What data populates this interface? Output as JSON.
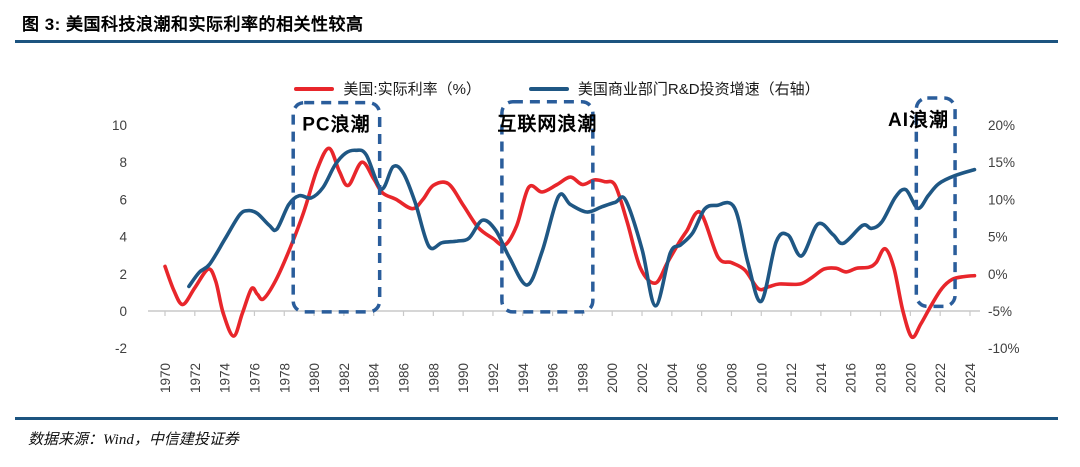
{
  "figure": {
    "title": "图 3:  美国科技浪潮和实际利率的相关性较高",
    "source": "数据来源：Wind，中信建投证券"
  },
  "colors": {
    "red_line": "#e8262b",
    "blue_line": "#1f5784",
    "box_blue": "#2a5d9b",
    "rule_blue": "#1c5480",
    "axis_gray": "#c9c9c9"
  },
  "legend": [
    {
      "label": "美国:实际利率（%）",
      "color": "#e8262b"
    },
    {
      "label": "美国商业部门R&D投资增速（右轴）",
      "color": "#1f5784"
    }
  ],
  "chart_data": {
    "type": "line",
    "title": "",
    "xlabel": "",
    "ylabel_left": "",
    "ylabel_right": "",
    "grid": false,
    "legend_position": "top-center",
    "x_ticks": [
      1970,
      1972,
      1974,
      1976,
      1978,
      1980,
      1982,
      1984,
      1986,
      1988,
      1990,
      1992,
      1994,
      1996,
      1998,
      2000,
      2002,
      2004,
      2006,
      2008,
      2010,
      2012,
      2014,
      2016,
      2018,
      2020,
      2022,
      2024
    ],
    "left_axis": {
      "ticks": [
        10,
        8,
        6,
        4,
        2,
        0,
        -2
      ],
      "labels": [
        "10",
        "8",
        "6",
        "4",
        "2",
        "0",
        "-2"
      ],
      "range": [
        -3.2,
        11.6
      ]
    },
    "right_axis": {
      "ticks": [
        20,
        15,
        10,
        5,
        0,
        -5,
        -10
      ],
      "labels": [
        "20%",
        "15%",
        "10%",
        "5%",
        "0%",
        "-5%",
        "-10%"
      ],
      "range": [
        -13,
        24
      ]
    },
    "series": [
      {
        "name": "美国:实际利率（%）",
        "axis": "left",
        "color": "#e8262b",
        "points": [
          [
            1970.0,
            2.4
          ],
          [
            1970.6,
            1.1
          ],
          [
            1971.2,
            0.35
          ],
          [
            1972.0,
            1.25
          ],
          [
            1972.9,
            2.25
          ],
          [
            1973.4,
            1.6
          ],
          [
            1973.9,
            -0.1
          ],
          [
            1974.6,
            -1.35
          ],
          [
            1975.2,
            -0.1
          ],
          [
            1975.8,
            1.2
          ],
          [
            1976.2,
            0.9
          ],
          [
            1976.6,
            0.65
          ],
          [
            1977.4,
            1.6
          ],
          [
            1978.3,
            3.2
          ],
          [
            1979.3,
            5.3
          ],
          [
            1980.2,
            7.6
          ],
          [
            1981.0,
            8.75
          ],
          [
            1981.7,
            7.5
          ],
          [
            1982.3,
            6.75
          ],
          [
            1983.2,
            8.0
          ],
          [
            1984.0,
            7.1
          ],
          [
            1984.6,
            6.35
          ],
          [
            1985.5,
            6.0
          ],
          [
            1986.6,
            5.5
          ],
          [
            1987.3,
            6.0
          ],
          [
            1988.0,
            6.75
          ],
          [
            1989.0,
            6.85
          ],
          [
            1990.0,
            5.7
          ],
          [
            1991.0,
            4.5
          ],
          [
            1992.0,
            3.9
          ],
          [
            1992.8,
            3.55
          ],
          [
            1993.6,
            4.6
          ],
          [
            1994.4,
            6.65
          ],
          [
            1995.3,
            6.4
          ],
          [
            1996.3,
            6.8
          ],
          [
            1997.2,
            7.2
          ],
          [
            1998.0,
            6.8
          ],
          [
            1998.8,
            7.05
          ],
          [
            1999.5,
            6.95
          ],
          [
            2000.2,
            6.75
          ],
          [
            2001.0,
            4.8
          ],
          [
            2001.9,
            2.3
          ],
          [
            2002.9,
            1.5
          ],
          [
            2003.7,
            2.6
          ],
          [
            2004.5,
            3.7
          ],
          [
            2005.0,
            4.3
          ],
          [
            2005.9,
            5.3
          ],
          [
            2007.1,
            2.9
          ],
          [
            2008.0,
            2.6
          ],
          [
            2008.9,
            2.2
          ],
          [
            2009.8,
            1.2
          ],
          [
            2010.5,
            1.3
          ],
          [
            2011.2,
            1.45
          ],
          [
            2012.6,
            1.45
          ],
          [
            2013.4,
            1.8
          ],
          [
            2014.2,
            2.25
          ],
          [
            2015.0,
            2.3
          ],
          [
            2015.7,
            2.1
          ],
          [
            2016.4,
            2.3
          ],
          [
            2017.2,
            2.35
          ],
          [
            2017.7,
            2.6
          ],
          [
            2018.3,
            3.35
          ],
          [
            2018.9,
            2.3
          ],
          [
            2019.5,
            0.0
          ],
          [
            2020.1,
            -1.4
          ],
          [
            2020.7,
            -0.7
          ],
          [
            2021.4,
            0.3
          ],
          [
            2022.1,
            1.2
          ],
          [
            2022.8,
            1.7
          ],
          [
            2023.6,
            1.85
          ],
          [
            2024.3,
            1.9
          ]
        ]
      },
      {
        "name": "美国商业部门R&D投资增速（右轴）",
        "axis": "right",
        "color": "#1f5784",
        "points": [
          [
            1971.6,
            -1.7
          ],
          [
            1972.3,
            0.2
          ],
          [
            1973.0,
            1.3
          ],
          [
            1974.0,
            4.6
          ],
          [
            1975.0,
            7.9
          ],
          [
            1975.6,
            8.5
          ],
          [
            1976.2,
            8.1
          ],
          [
            1977.0,
            6.5
          ],
          [
            1977.5,
            6.0
          ],
          [
            1978.3,
            9.3
          ],
          [
            1979.0,
            10.5
          ],
          [
            1979.8,
            10.2
          ],
          [
            1980.6,
            11.6
          ],
          [
            1981.4,
            14.6
          ],
          [
            1982.1,
            16.2
          ],
          [
            1982.8,
            16.6
          ],
          [
            1983.5,
            16.0
          ],
          [
            1984.5,
            11.4
          ],
          [
            1985.3,
            14.4
          ],
          [
            1986.0,
            13.5
          ],
          [
            1986.8,
            9.5
          ],
          [
            1987.7,
            3.7
          ],
          [
            1988.6,
            4.2
          ],
          [
            1989.6,
            4.4
          ],
          [
            1990.4,
            4.8
          ],
          [
            1991.3,
            7.2
          ],
          [
            1992.2,
            5.8
          ],
          [
            1993.1,
            2.2
          ],
          [
            1994.3,
            -1.5
          ],
          [
            1995.3,
            3.0
          ],
          [
            1996.4,
            10.4
          ],
          [
            1997.2,
            9.3
          ],
          [
            1998.3,
            8.3
          ],
          [
            1999.3,
            9.0
          ],
          [
            2000.2,
            9.6
          ],
          [
            2000.9,
            9.9
          ],
          [
            2002.0,
            3.3
          ],
          [
            2002.9,
            -4.3
          ],
          [
            2003.9,
            2.8
          ],
          [
            2004.6,
            3.9
          ],
          [
            2005.4,
            5.5
          ],
          [
            2006.2,
            8.7
          ],
          [
            2007.0,
            9.2
          ],
          [
            2008.2,
            8.9
          ],
          [
            2009.1,
            1.5
          ],
          [
            2010.0,
            -3.7
          ],
          [
            2011.0,
            4.3
          ],
          [
            2011.8,
            5.2
          ],
          [
            2012.7,
            2.4
          ],
          [
            2013.8,
            6.7
          ],
          [
            2014.8,
            5.3
          ],
          [
            2015.5,
            4.1
          ],
          [
            2016.8,
            6.5
          ],
          [
            2017.4,
            6.1
          ],
          [
            2018.1,
            7.0
          ],
          [
            2019.0,
            10.3
          ],
          [
            2019.7,
            11.3
          ],
          [
            2020.5,
            8.8
          ],
          [
            2021.2,
            10.5
          ],
          [
            2021.9,
            12.1
          ],
          [
            2023.0,
            13.2
          ],
          [
            2024.3,
            14.0
          ]
        ]
      }
    ],
    "annotations": [
      {
        "label": "PC浪潮",
        "x_from": 1978.6,
        "x_to": 1984.4,
        "y_from": -0.05,
        "y_to": 11.2,
        "label_align": "center"
      },
      {
        "label": "互联网浪潮",
        "x_from": 1992.6,
        "x_to": 1998.7,
        "y_from": -0.05,
        "y_to": 11.25,
        "label_align": "center"
      },
      {
        "label": "AI浪潮",
        "x_from": 2020.4,
        "x_to": 2023.0,
        "y_from": 0.25,
        "y_to": 11.45,
        "label_align": "right"
      }
    ]
  }
}
